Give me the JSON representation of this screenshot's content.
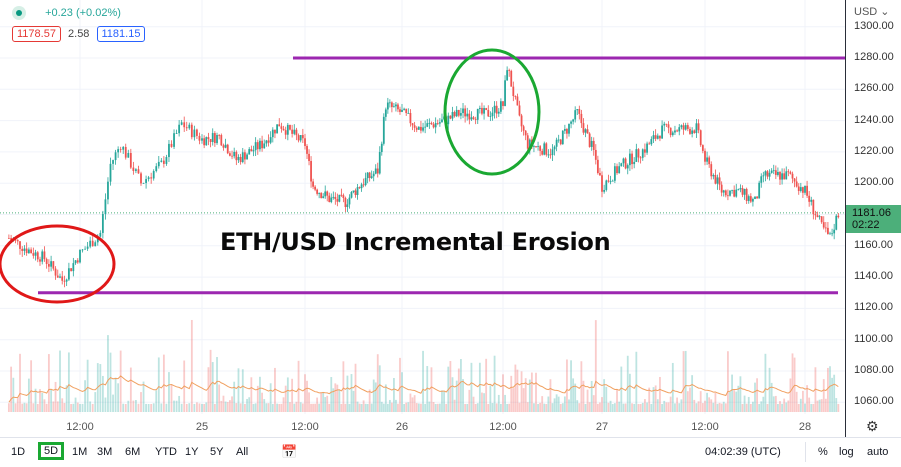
{
  "legend": {
    "status_color": "#089981",
    "change": "+0.23 (+0.02%)",
    "bid": "1178.57",
    "spread": "2.58",
    "ask": "1181.15"
  },
  "price_axis": {
    "currency": "USD ⌄",
    "ticks": [
      "1300.00",
      "1280.00",
      "1260.00",
      "1240.00",
      "1220.00",
      "1200.00",
      "1160.00",
      "1140.00",
      "1120.00",
      "1100.00",
      "1080.00",
      "1060.00"
    ],
    "current_price": "1181.06",
    "countdown": "02:22",
    "current_color": "#4caf7a"
  },
  "time_axis": {
    "labels": [
      "12:00",
      "25",
      "12:00",
      "26",
      "12:00",
      "27",
      "12:00",
      "28"
    ]
  },
  "annotation": {
    "title": "ETH/USD Incremental Erosion",
    "resistance": 1280,
    "support": 1130,
    "line_color": "#9c27b0",
    "red_circle": "#e01818",
    "green_circle": "#1aa832"
  },
  "chart_data": {
    "type": "candlestick",
    "symbol_pair": "ETH/USD",
    "ylim": [
      1050,
      1305
    ],
    "up_color": "#26a69a",
    "down_color": "#ef5350",
    "closes": [
      [
        "24 04:00",
        1165
      ],
      [
        "24 06:00",
        1158
      ],
      [
        "24 08:00",
        1152
      ],
      [
        "24 10:00",
        1138
      ],
      [
        "24 12:00",
        1155
      ],
      [
        "24 14:00",
        1168
      ],
      [
        "24 15:00",
        1212
      ],
      [
        "24 16:00",
        1225
      ],
      [
        "24 18:00",
        1200
      ],
      [
        "24 20:00",
        1212
      ],
      [
        "24 22:00",
        1238
      ],
      [
        "25 00:00",
        1228
      ],
      [
        "25 02:00",
        1230
      ],
      [
        "25 04:00",
        1215
      ],
      [
        "25 07:00",
        1225
      ],
      [
        "25 09:00",
        1238
      ],
      [
        "25 12:00",
        1225
      ],
      [
        "25 13:00",
        1198
      ],
      [
        "25 15:00",
        1190
      ],
      [
        "25 17:00",
        1188
      ],
      [
        "25 19:00",
        1200
      ],
      [
        "25 21:00",
        1208
      ],
      [
        "25 22:00",
        1250
      ],
      [
        "26 00:00",
        1245
      ],
      [
        "26 02:00",
        1235
      ],
      [
        "26 05:00",
        1240
      ],
      [
        "26 07:00",
        1245
      ],
      [
        "26 10:00",
        1244
      ],
      [
        "26 12:00",
        1250
      ],
      [
        "26 12:30",
        1275
      ],
      [
        "26 14:00",
        1240
      ],
      [
        "26 15:00",
        1225
      ],
      [
        "26 18:00",
        1220
      ],
      [
        "26 21:00",
        1245
      ],
      [
        "26 23:00",
        1220
      ],
      [
        "27 00:00",
        1198
      ],
      [
        "27 02:00",
        1210
      ],
      [
        "27 05:00",
        1222
      ],
      [
        "27 07:00",
        1234
      ],
      [
        "27 11:00",
        1235
      ],
      [
        "27 12:00",
        1215
      ],
      [
        "27 14:00",
        1195
      ],
      [
        "27 16:00",
        1195
      ],
      [
        "27 18:00",
        1188
      ],
      [
        "27 19:00",
        1205
      ],
      [
        "27 22:00",
        1205
      ],
      [
        "28 00:00",
        1195
      ],
      [
        "28 02:00",
        1172
      ],
      [
        "28 03:00",
        1165
      ],
      [
        "28 04:00",
        1181
      ]
    ]
  },
  "bottom_bar": {
    "ranges": [
      "1D",
      "5D",
      "1M",
      "3M",
      "6M",
      "YTD",
      "1Y",
      "5Y",
      "All"
    ],
    "selected": "5D",
    "time": "04:02:39 (UTC)",
    "percent": "%",
    "log": "log",
    "auto": "auto"
  }
}
